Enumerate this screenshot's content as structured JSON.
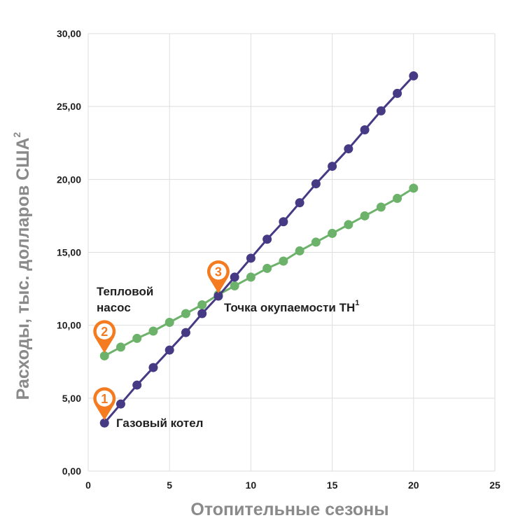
{
  "chart_data": {
    "type": "line",
    "title": "",
    "xlabel": "Отопительные сезоны",
    "ylabel": "Расходы, тыс. долларов США",
    "ylabel_sup": "2",
    "xlim": [
      0,
      25
    ],
    "ylim": [
      0,
      30
    ],
    "x_ticks": [
      0,
      5,
      10,
      15,
      20,
      25
    ],
    "x_tick_labels": [
      "0",
      "5",
      "10",
      "15",
      "20",
      "25"
    ],
    "y_ticks": [
      0,
      5,
      10,
      15,
      20,
      25,
      30
    ],
    "y_tick_labels": [
      "0,00",
      "5,00",
      "10,00",
      "15,00",
      "20,00",
      "25,00",
      "30,00"
    ],
    "grid": true,
    "series": [
      {
        "name": "Газовый котел",
        "color": "#473a85",
        "x": [
          1,
          2,
          3,
          4,
          5,
          6,
          7,
          8,
          9,
          10,
          11,
          12,
          13,
          14,
          15,
          16,
          17,
          18,
          19,
          20
        ],
        "values": [
          3.3,
          4.6,
          5.9,
          7.1,
          8.3,
          9.5,
          10.8,
          12.0,
          13.3,
          14.6,
          15.9,
          17.1,
          18.4,
          19.7,
          20.9,
          22.1,
          23.4,
          24.7,
          25.9,
          27.1
        ]
      },
      {
        "name": "Тепловой насос",
        "color": "#6db26b",
        "x": [
          1,
          2,
          3,
          4,
          5,
          6,
          7,
          8,
          9,
          10,
          11,
          12,
          13,
          14,
          15,
          16,
          17,
          18,
          19,
          20
        ],
        "values": [
          7.9,
          8.5,
          9.1,
          9.6,
          10.2,
          10.8,
          11.4,
          12.1,
          12.7,
          13.3,
          13.9,
          14.4,
          15.1,
          15.7,
          16.3,
          16.9,
          17.5,
          18.1,
          18.7,
          19.4
        ]
      }
    ],
    "annotations": [
      {
        "id": "gas",
        "text": "Газовый котел",
        "x": 1,
        "y": 3.3
      },
      {
        "id": "hp",
        "lines": [
          "Тепловой",
          "насос"
        ],
        "x": 1,
        "y": 7.9
      },
      {
        "id": "payback",
        "text": "Точка окупаемости ТН",
        "sup": "1",
        "x": 8,
        "y": 12.0
      }
    ],
    "markers": [
      {
        "label": "1",
        "x": 1,
        "y": 3.3
      },
      {
        "label": "2",
        "x": 1,
        "y": 7.9
      },
      {
        "label": "3",
        "x": 8,
        "y": 12.0
      }
    ]
  },
  "colors": {
    "gas": "#473a85",
    "heatpump": "#6db26b",
    "marker": "#f47b20",
    "grid": "#dedede",
    "axis_title": "#8a8a8a"
  }
}
